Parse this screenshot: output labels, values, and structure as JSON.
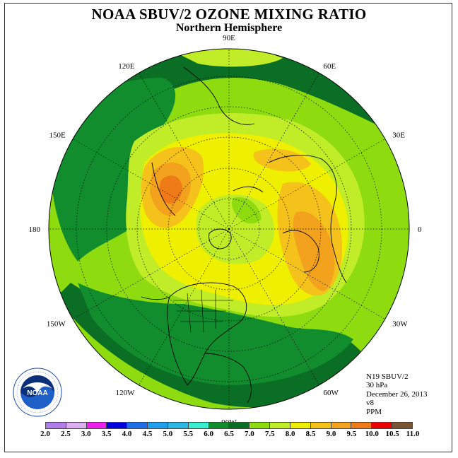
{
  "header": {
    "title": "NOAA SBUV/2 OZONE MIXING RATIO",
    "subtitle": "Northern Hemisphere"
  },
  "info": {
    "satellite": "N19 SBUV/2",
    "level": "30 hPa",
    "date": "December 26, 2013",
    "version": "v8",
    "units": "PPM"
  },
  "logo": {
    "text": "NOAA",
    "icon": "noaa-logo-icon"
  },
  "longitude_labels": [
    {
      "text": "90E",
      "lon": 90
    },
    {
      "text": "60E",
      "lon": 60
    },
    {
      "text": "30E",
      "lon": 30
    },
    {
      "text": "0",
      "lon": 0
    },
    {
      "text": "30W",
      "lon": -30
    },
    {
      "text": "60W",
      "lon": -60
    },
    {
      "text": "90W",
      "lon": -90
    },
    {
      "text": "120W",
      "lon": -120
    },
    {
      "text": "150W",
      "lon": -150
    },
    {
      "text": "180",
      "lon": 180
    },
    {
      "text": "150E",
      "lon": 150
    },
    {
      "text": "120E",
      "lon": 120
    }
  ],
  "colorbar": {
    "ticks": [
      "2.0",
      "2.5",
      "3.0",
      "3.5",
      "4.0",
      "4.5",
      "5.0",
      "5.5",
      "6.0",
      "6.5",
      "7.0",
      "7.5",
      "8.0",
      "8.5",
      "9.0",
      "9.5",
      "10.0",
      "10.5",
      "11.0"
    ],
    "colors": [
      "#b07ee8",
      "#dcb0f0",
      "#ee22ee",
      "#0000dd",
      "#1e6ee6",
      "#1ea0ef",
      "#2cb6e4",
      "#38f0d0",
      "#118d2e",
      "#0b6e25",
      "#8edc10",
      "#c0ec28",
      "#eef000",
      "#f4c21a",
      "#f2a21c",
      "#ee7a18",
      "#ea0000",
      "#7a5534"
    ]
  },
  "map_colors": {
    "dark_green": "#0b6e25",
    "green": "#118d2e",
    "yellow_green": "#8edc10",
    "light_yellow_green": "#c0ec28",
    "yellow": "#eef000",
    "orange_yellow": "#f4c21a",
    "orange": "#f2a21c",
    "dark_orange": "#ee7a18"
  }
}
